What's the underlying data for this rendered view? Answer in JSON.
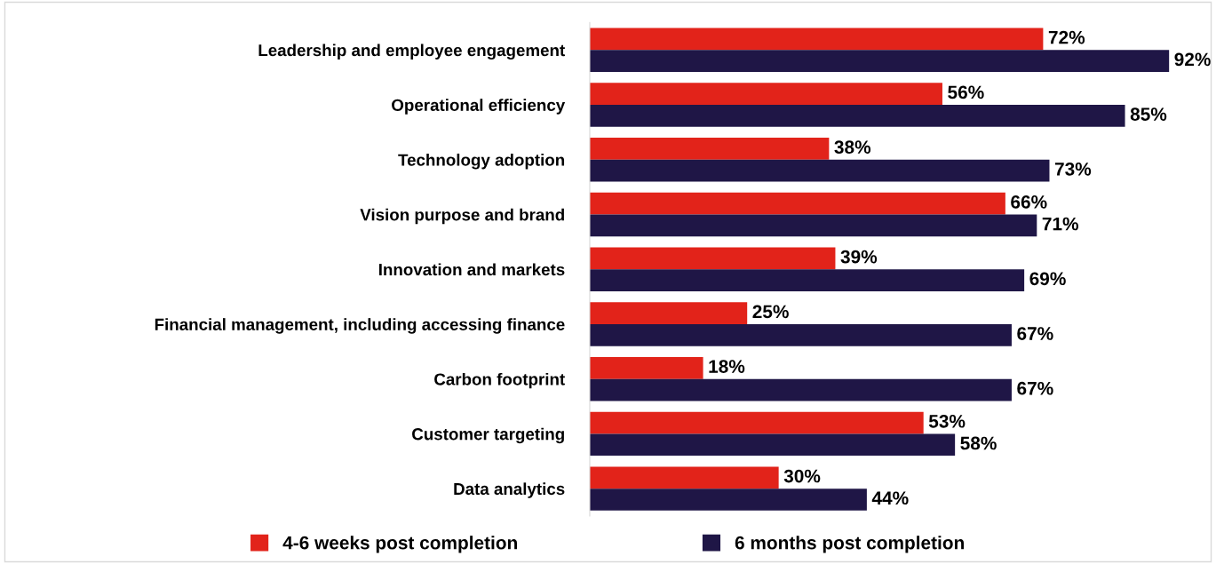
{
  "chart_data": {
    "type": "bar",
    "orientation": "horizontal",
    "relative": false,
    "categories": [
      "Leadership and employee engagement",
      "Operational efficiency",
      "Technology adoption",
      "Vision purpose and brand",
      "Innovation and markets",
      "Financial management, including accessing finance",
      "Carbon footprint",
      "Customer targeting",
      "Data analytics"
    ],
    "series": [
      {
        "name": "4-6 weeks post completion",
        "color": "#e2231a",
        "values": [
          72,
          56,
          38,
          66,
          39,
          25,
          18,
          53,
          30
        ],
        "value_labels": [
          "72%",
          "56%",
          "38%",
          "66%",
          "39%",
          "25%",
          "18%",
          "53%",
          "30%"
        ]
      },
      {
        "name": "6 months post completion",
        "color": "#1f1646",
        "values": [
          92,
          85,
          73,
          71,
          69,
          67,
          67,
          58,
          44
        ],
        "value_labels": [
          "92%",
          "85%",
          "73%",
          "71%",
          "69%",
          "67%",
          "67%",
          "58%",
          "44%"
        ]
      }
    ],
    "legend": "bottom",
    "grid": false
  }
}
